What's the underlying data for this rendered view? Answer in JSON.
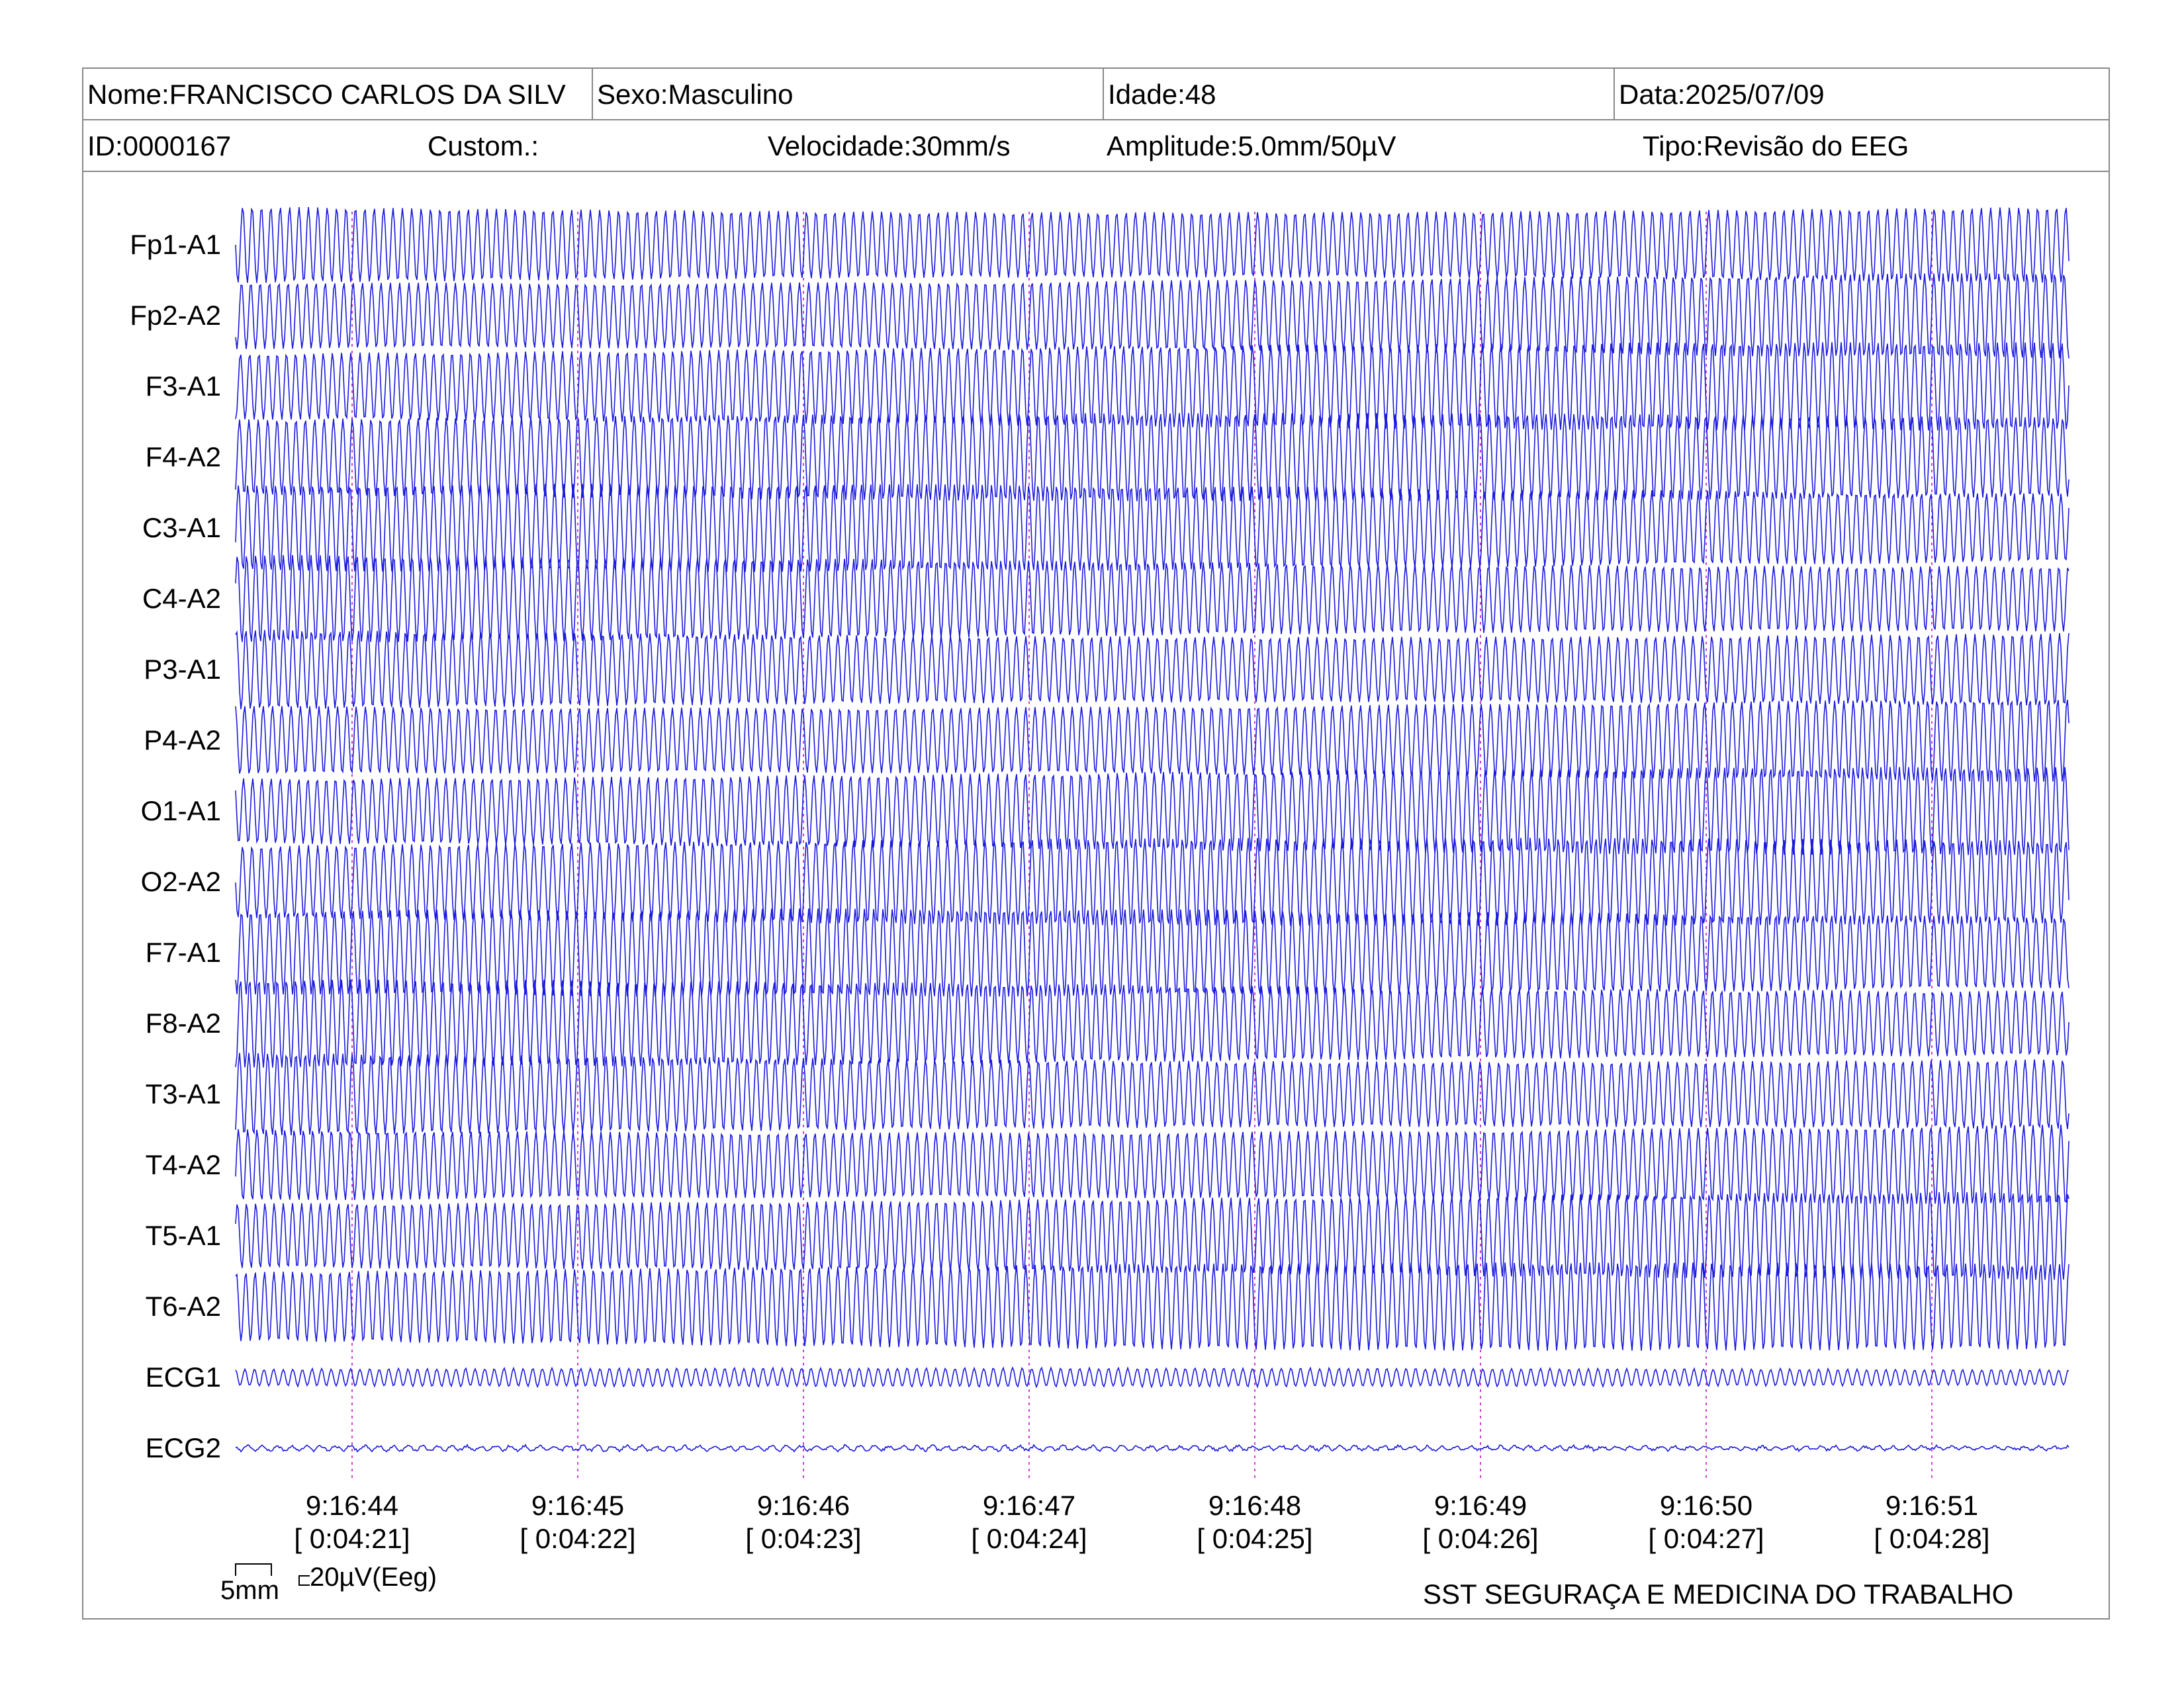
{
  "header": {
    "name": "Nome:FRANCISCO CARLOS DA SILV",
    "sex": "Sexo:Masculino",
    "age": "Idade:48",
    "date": "Data:2025/07/09",
    "id": "ID:0000167",
    "custom": "Custom.:",
    "speed": "Velocidade:30mm/s",
    "amplitude": "Amplitude:5.0mm/50µV",
    "type": "Tipo:Revisão do EEG"
  },
  "scale": {
    "x_label": "5mm",
    "y_label": "20µV(Eeg)"
  },
  "footer": {
    "company": "SST SEGURAÇA E MEDICINA DO TRABALHO"
  },
  "colors": {
    "trace": "#1a1adc",
    "second_marker": "#d040d0",
    "border": "#888888"
  },
  "chart_data": {
    "type": "line",
    "title": "",
    "xlabel": "",
    "ylabel": "",
    "grid": false,
    "channels": [
      "Fp1-A1",
      "Fp2-A2",
      "F3-A1",
      "F4-A2",
      "C3-A1",
      "C4-A2",
      "P3-A1",
      "P4-A2",
      "O1-A1",
      "O2-A2",
      "F7-A1",
      "F8-A2",
      "T3-A1",
      "T4-A2",
      "T5-A1",
      "T6-A2",
      "ECG1",
      "ECG2"
    ],
    "time_ticks": [
      {
        "time": "9:16:44",
        "elapsed": "[ 0:04:21]"
      },
      {
        "time": "9:16:45",
        "elapsed": "[ 0:04:22]"
      },
      {
        "time": "9:16:46",
        "elapsed": "[ 0:04:23]"
      },
      {
        "time": "9:16:47",
        "elapsed": "[ 0:04:24]"
      },
      {
        "time": "9:16:48",
        "elapsed": "[ 0:04:25]"
      },
      {
        "time": "9:16:49",
        "elapsed": "[ 0:04:26]"
      },
      {
        "time": "9:16:50",
        "elapsed": "[ 0:04:27]"
      },
      {
        "time": "9:16:51",
        "elapsed": "[ 0:04:28]"
      }
    ],
    "paper_speed_mm_per_s": 30,
    "sensitivity": "5.0mm/50µV",
    "waveform": "continuous high-amplitude rhythmic oscillation on all EEG channels; ECG1 low-amplitude regular; ECG2 near-flat"
  }
}
